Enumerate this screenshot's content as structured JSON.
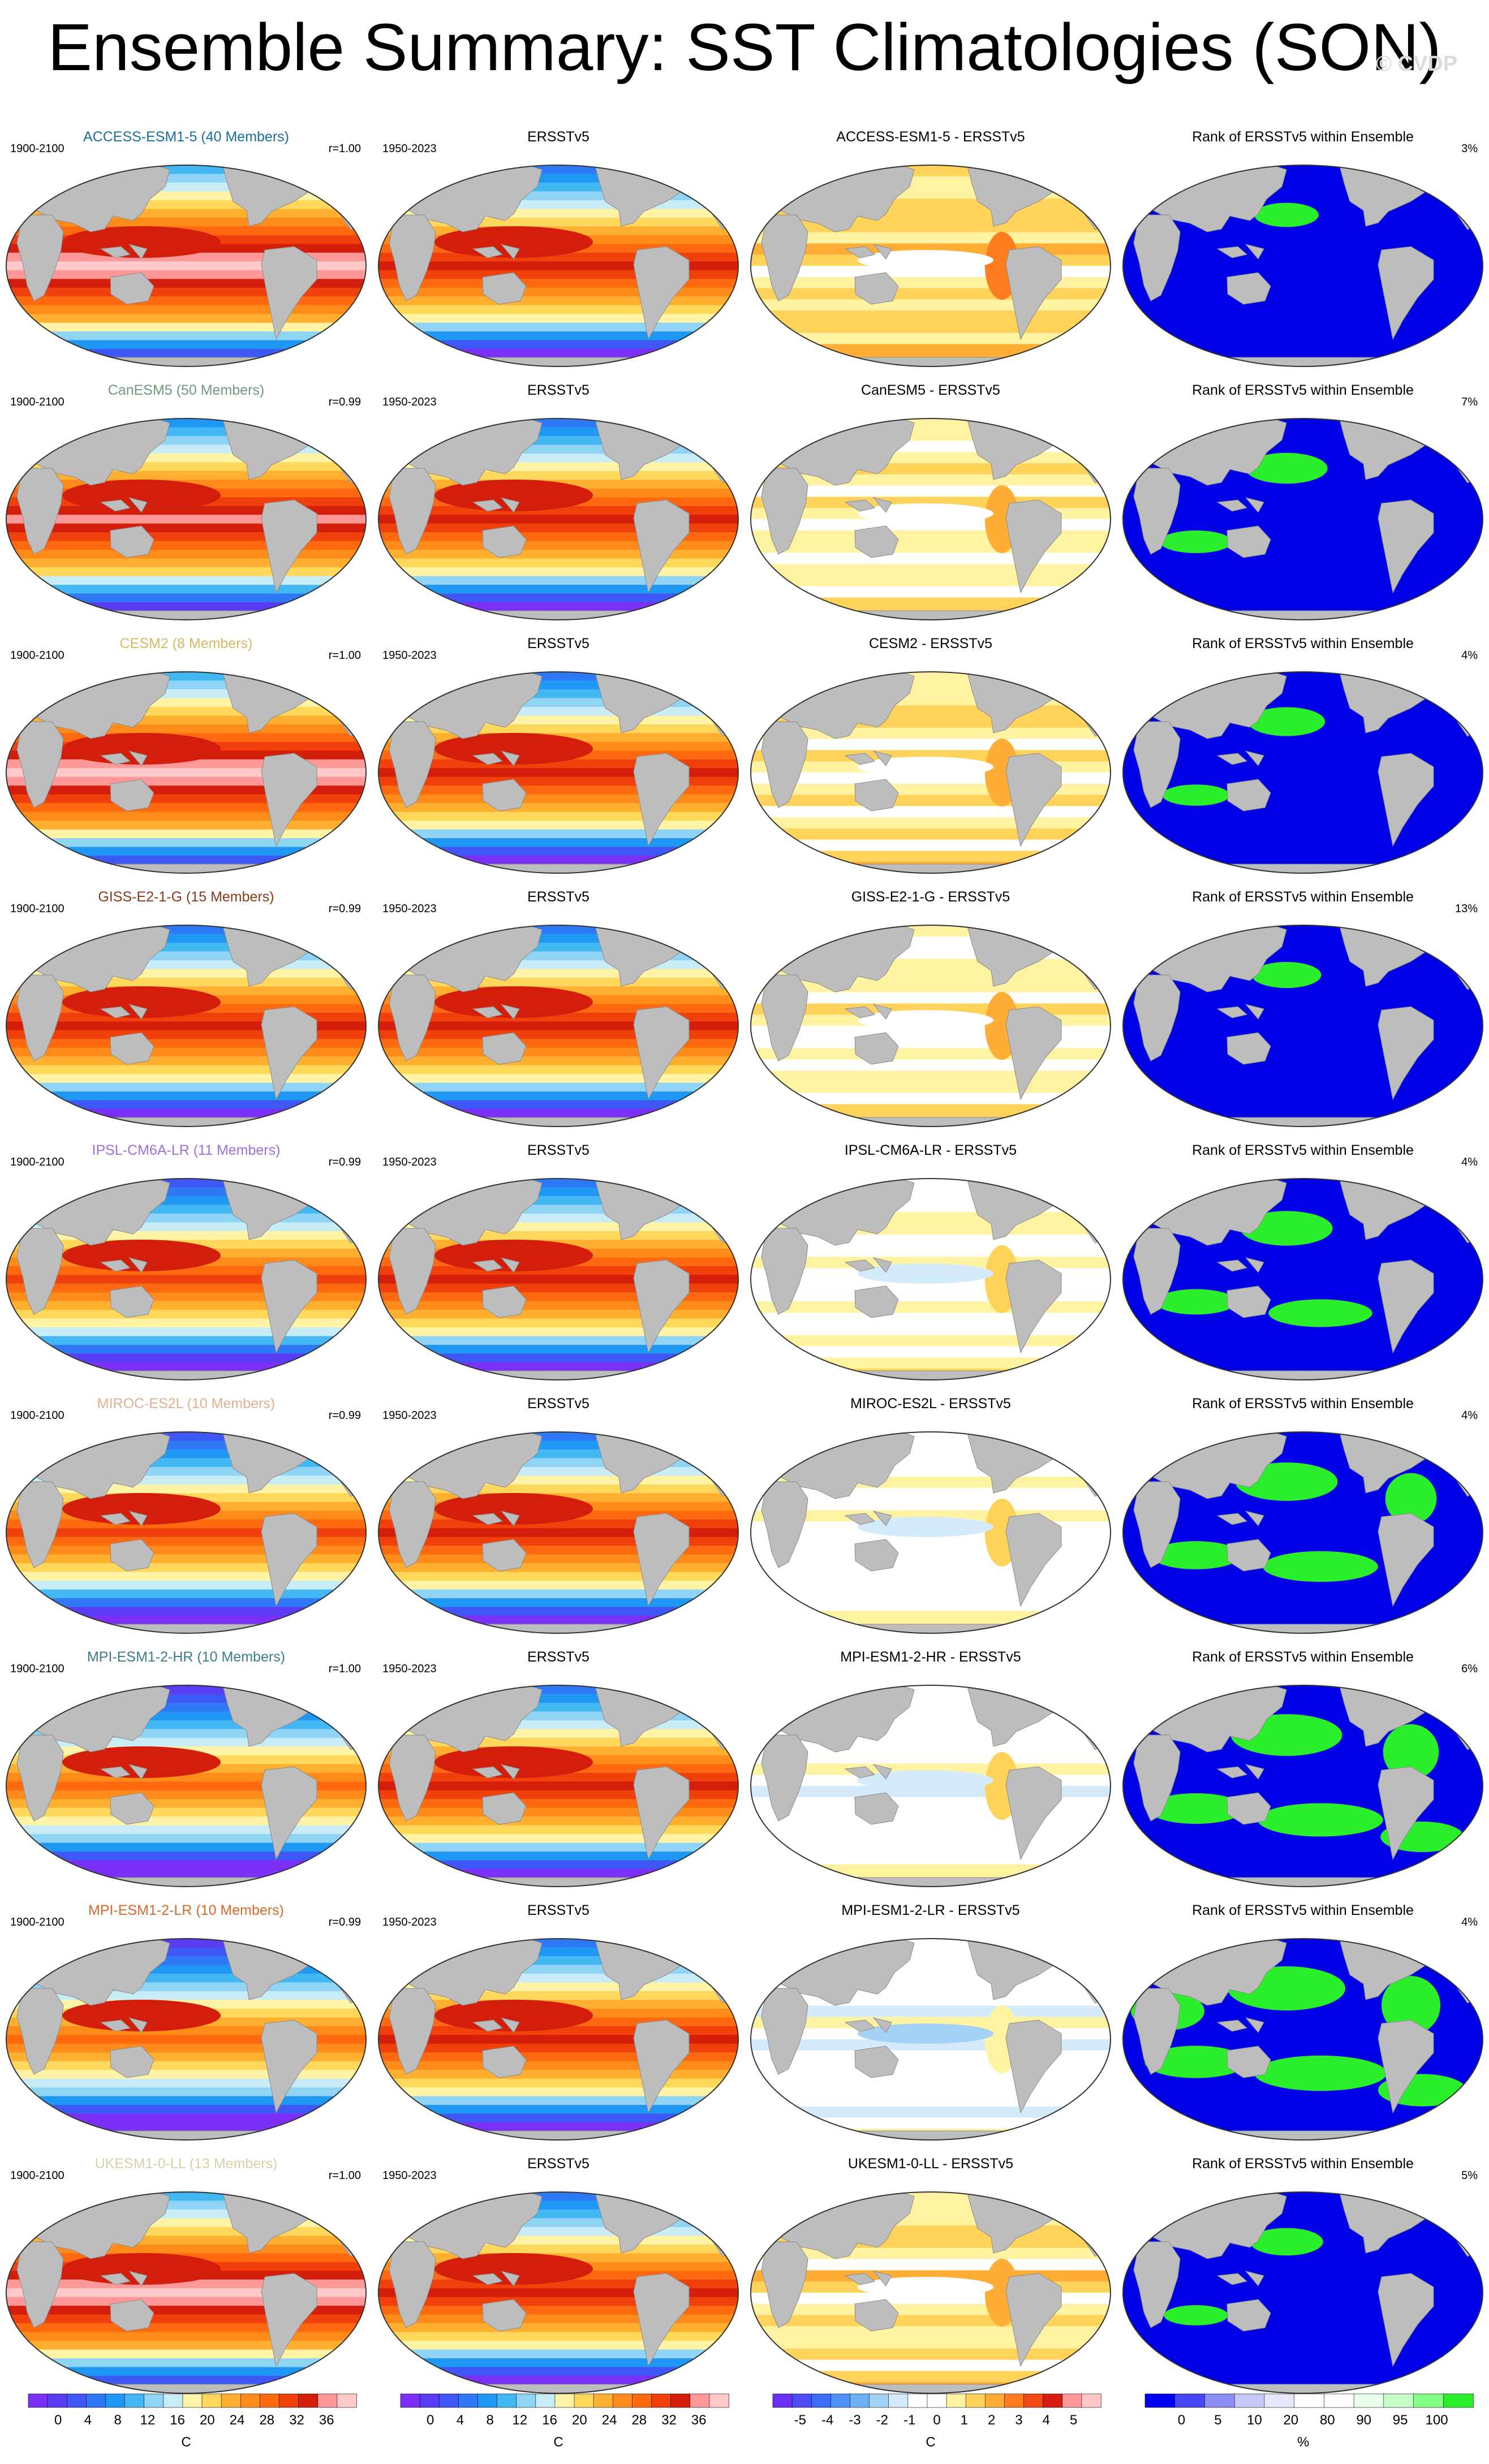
{
  "title": "Ensemble Summary: SST Climatologies (SON)",
  "watermark": "© CVDP",
  "colors": {
    "land": "#bdbdbd",
    "sst_scale": [
      "#7b2ff7",
      "#5a3cf5",
      "#3f58f5",
      "#2f79f7",
      "#1f98f5",
      "#43b8f5",
      "#8fd3f5",
      "#c7ecf5",
      "#fff4a6",
      "#ffd75a",
      "#ffb030",
      "#ff8c1a",
      "#ff6a10",
      "#f0400c",
      "#d41e0c",
      "#ff9999",
      "#ffc9c9"
    ],
    "diff_scale": [
      "#6a2ff2",
      "#4d4df2",
      "#3b6cf5",
      "#4e91f7",
      "#6ab1f5",
      "#a4d2f7",
      "#d4ebfb",
      "#ffffff",
      "#ffffff",
      "#fff2a0",
      "#ffd25a",
      "#ffad34",
      "#ff7d1f",
      "#f24a16",
      "#d61c12",
      "#ff9999",
      "#ffc7c7"
    ],
    "rank_scale": [
      "#0000f0",
      "#4646f5",
      "#8c8cf5",
      "#c8c8f7",
      "#e8e8fb",
      "#ffffff",
      "#ffffff",
      "#e9ffe9",
      "#c7ffc7",
      "#86ff86",
      "#2bef2b"
    ],
    "rank_map_colors": {
      "low": "#0000e6",
      "mid": "#ffffff",
      "high": "#2bef2b"
    }
  },
  "column_labels": {
    "obs_period": "1950-2023",
    "obs_title": "ERSSTv5",
    "rank_title": "Rank of ERSSTv5 within Ensemble",
    "model_period": "1900-2100"
  },
  "rows": [
    {
      "model": "ACCESS-ESM1-5",
      "members": "ACCESS-ESM1-5 (40 Members)",
      "label_color": "#1a6fa0",
      "r": "r=1.00",
      "diff_title": "ACCESS-ESM1-5 - ERSSTv5",
      "rank_pct": "3%",
      "bias": 1.2,
      "high_frac": 0.08
    },
    {
      "model": "CanESM5",
      "members": "CanESM5 (50 Members)",
      "label_color": "#6e9a7e",
      "r": "r=0.99",
      "diff_title": "CanESM5 - ERSSTv5",
      "rank_pct": "7%",
      "bias": 0.4,
      "high_frac": 0.22
    },
    {
      "model": "CESM2",
      "members": "CESM2 (8 Members)",
      "label_color": "#d8b863",
      "r": "r=1.00",
      "diff_title": "CESM2 - ERSSTv5",
      "rank_pct": "4%",
      "bias": 0.8,
      "high_frac": 0.18
    },
    {
      "model": "GISS-E2-1-G",
      "members": "GISS-E2-1-G (15 Members)",
      "label_color": "#8b3a1a",
      "r": "r=0.99",
      "diff_title": "GISS-E2-1-G - ERSSTv5",
      "rank_pct": "13%",
      "bias": 0.2,
      "high_frac": 0.12
    },
    {
      "model": "IPSL-CM6A-LR",
      "members": "IPSL-CM6A-LR (11 Members)",
      "label_color": "#9b6fe0",
      "r": "r=0.99",
      "diff_title": "IPSL-CM6A-LR - ERSSTv5",
      "rank_pct": "4%",
      "bias": -0.3,
      "high_frac": 0.3
    },
    {
      "model": "MIROC-ES2L",
      "members": "MIROC-ES2L (10 Members)",
      "label_color": "#e2b090",
      "r": "r=0.99",
      "diff_title": "MIROC-ES2L - ERSSTv5",
      "rank_pct": "4%",
      "bias": -0.6,
      "high_frac": 0.38
    },
    {
      "model": "MPI-ESM1-2-HR",
      "members": "MPI-ESM1-2-HR (10 Members)",
      "label_color": "#3c7d88",
      "r": "r=1.00",
      "diff_title": "MPI-ESM1-2-HR - ERSSTv5",
      "rank_pct": "6%",
      "bias": -0.8,
      "high_frac": 0.45
    },
    {
      "model": "MPI-ESM1-2-LR",
      "members": "MPI-ESM1-2-LR (10 Members)",
      "label_color": "#d8692a",
      "r": "r=0.99",
      "diff_title": "MPI-ESM1-2-LR - ERSSTv5",
      "rank_pct": "4%",
      "bias": -1.1,
      "high_frac": 0.5
    },
    {
      "model": "UKESM1-0-LL",
      "members": "UKESM1-0-LL (13 Members)",
      "label_color": "#d8d0a8",
      "r": "r=1.00",
      "diff_title": "UKESM1-0-LL - ERSSTv5",
      "rank_pct": "5%",
      "bias": 0.9,
      "high_frac": 0.15
    }
  ],
  "chart_data": [
    {
      "type": "heatmap",
      "variable": "SST climatology",
      "unit": "C",
      "levels": [
        -2,
        0,
        2,
        4,
        6,
        8,
        10,
        12,
        14,
        16,
        18,
        20,
        22,
        24,
        26,
        28,
        30,
        32,
        34,
        36,
        38
      ],
      "tick_labels": [
        "0",
        "4",
        "8",
        "12",
        "16",
        "20",
        "24",
        "28",
        "32",
        "36"
      ]
    },
    {
      "type": "heatmap",
      "variable": "Model minus ERSSTv5",
      "unit": "C",
      "tick_labels": [
        "-5",
        "-4",
        "-3",
        "-2",
        "-1",
        "0",
        "1",
        "2",
        "3",
        "4",
        "5"
      ]
    },
    {
      "type": "heatmap",
      "variable": "Rank of ERSSTv5 within Ensemble",
      "unit": "%",
      "tick_labels": [
        "0",
        "5",
        "10",
        "20",
        "80",
        "90",
        "95",
        "100"
      ]
    }
  ]
}
